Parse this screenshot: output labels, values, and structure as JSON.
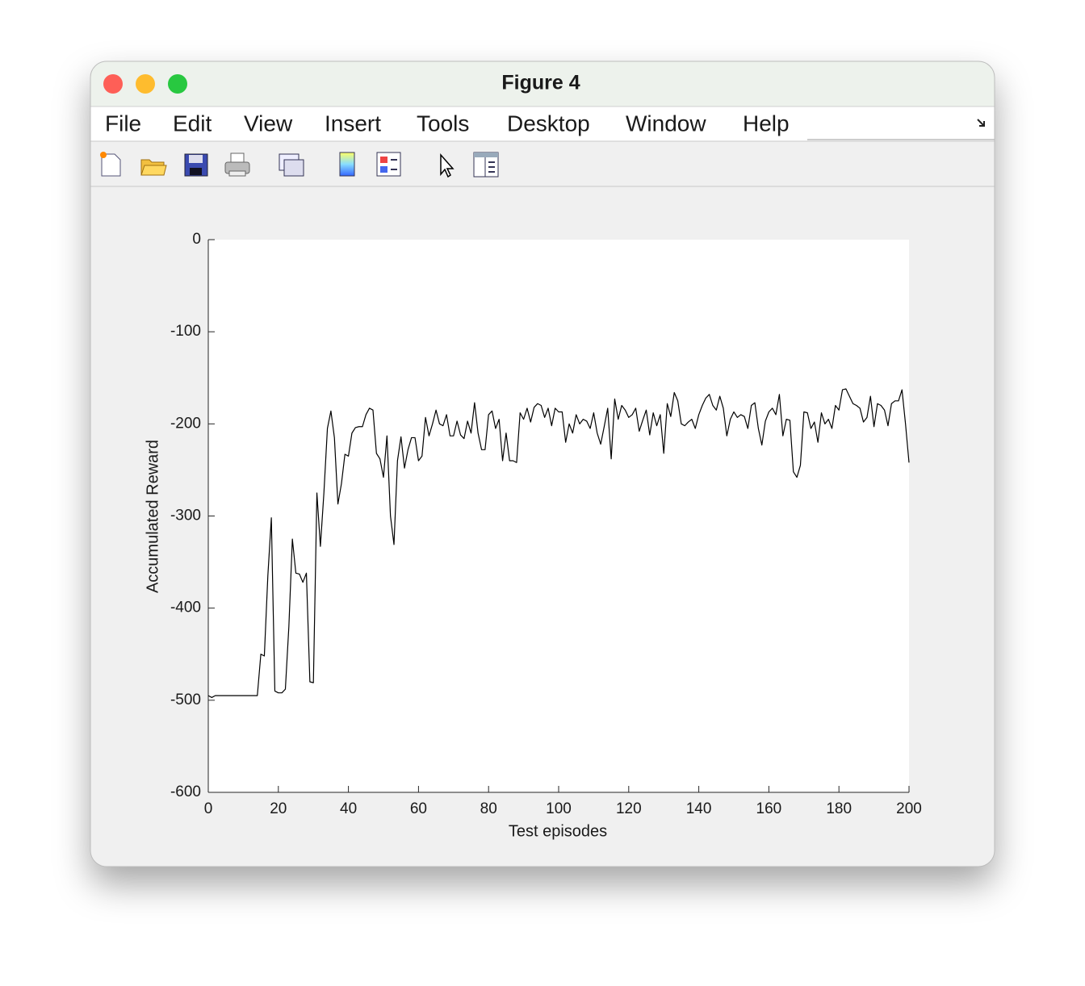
{
  "window": {
    "title": "Figure 4",
    "menu": [
      "File",
      "Edit",
      "View",
      "Insert",
      "Tools",
      "Desktop",
      "Window",
      "Help"
    ]
  },
  "chart_data": {
    "type": "line",
    "xlabel": "Test episodes",
    "ylabel": "Accumulated Reward",
    "color": "#000000",
    "xlim": [
      0,
      200
    ],
    "xticks": [
      0,
      20,
      40,
      60,
      80,
      100,
      120,
      140,
      160,
      180,
      200
    ],
    "ylim": [
      -600,
      0
    ],
    "yticks": [
      0,
      -100,
      -200,
      -300,
      -400,
      -500,
      -600
    ],
    "x": [
      0,
      1,
      2,
      3,
      4,
      5,
      6,
      7,
      8,
      9,
      10,
      11,
      12,
      13,
      14,
      15,
      16,
      17,
      18,
      19,
      20,
      21,
      22,
      23,
      24,
      25,
      26,
      27,
      28,
      29,
      30,
      31,
      32,
      33,
      34,
      35,
      36,
      37,
      38,
      39,
      40,
      41,
      42,
      43,
      44,
      45,
      46,
      47,
      48,
      49,
      50,
      51,
      52,
      53,
      54,
      55,
      56,
      57,
      58,
      59,
      60,
      61,
      62,
      63,
      64,
      65,
      66,
      67,
      68,
      69,
      70,
      71,
      72,
      73,
      74,
      75,
      76,
      77,
      78,
      79,
      80,
      81,
      82,
      83,
      84,
      85,
      86,
      87,
      88,
      89,
      90,
      91,
      92,
      93,
      94,
      95,
      96,
      97,
      98,
      99,
      100,
      101,
      102,
      103,
      104,
      105,
      106,
      107,
      108,
      109,
      110,
      111,
      112,
      113,
      114,
      115,
      116,
      117,
      118,
      119,
      120,
      121,
      122,
      123,
      124,
      125,
      126,
      127,
      128,
      129,
      130,
      131,
      132,
      133,
      134,
      135,
      136,
      137,
      138,
      139,
      140,
      141,
      142,
      143,
      144,
      145,
      146,
      147,
      148,
      149,
      150,
      151,
      152,
      153,
      154,
      155,
      156,
      157,
      158,
      159,
      160,
      161,
      162,
      163,
      164,
      165,
      166,
      167,
      168,
      169,
      170,
      171,
      172,
      173,
      174,
      175,
      176,
      177,
      178,
      179,
      180,
      181,
      182,
      183,
      184,
      185,
      186,
      187,
      188,
      189,
      190,
      191,
      192,
      193,
      194,
      195,
      196,
      197,
      198,
      199,
      200
    ],
    "values": [
      -495,
      -497,
      -495,
      -495,
      -495,
      -495,
      -495,
      -495,
      -495,
      -495,
      -495,
      -495,
      -495,
      -495,
      -495,
      -450,
      -452,
      -365,
      -302,
      -490,
      -492,
      -492,
      -488,
      -420,
      -325,
      -362,
      -363,
      -372,
      -362,
      -480,
      -481,
      -275,
      -333,
      -275,
      -205,
      -186,
      -215,
      -287,
      -265,
      -233,
      -235,
      -210,
      -204,
      -203,
      -203,
      -190,
      -183,
      -185,
      -232,
      -238,
      -258,
      -213,
      -300,
      -331,
      -240,
      -214,
      -248,
      -228,
      -215,
      -215,
      -240,
      -235,
      -193,
      -213,
      -200,
      -185,
      -200,
      -202,
      -190,
      -213,
      -213,
      -197,
      -212,
      -216,
      -197,
      -210,
      -177,
      -210,
      -228,
      -228,
      -190,
      -186,
      -205,
      -195,
      -240,
      -210,
      -240,
      -240,
      -242,
      -188,
      -195,
      -183,
      -198,
      -182,
      -178,
      -180,
      -193,
      -183,
      -202,
      -183,
      -187,
      -187,
      -220,
      -200,
      -210,
      -190,
      -200,
      -195,
      -197,
      -205,
      -188,
      -210,
      -222,
      -203,
      -183,
      -238,
      -173,
      -195,
      -180,
      -185,
      -193,
      -190,
      -183,
      -208,
      -196,
      -185,
      -212,
      -188,
      -202,
      -190,
      -232,
      -178,
      -192,
      -166,
      -175,
      -200,
      -202,
      -198,
      -195,
      -205,
      -190,
      -180,
      -172,
      -168,
      -180,
      -185,
      -170,
      -183,
      -213,
      -195,
      -187,
      -193,
      -190,
      -192,
      -205,
      -180,
      -177,
      -205,
      -223,
      -197,
      -187,
      -183,
      -190,
      -168,
      -213,
      -195,
      -196,
      -252,
      -258,
      -245,
      -187,
      -188,
      -205,
      -198,
      -220,
      -188,
      -200,
      -195,
      -205,
      -180,
      -185,
      -163,
      -162,
      -170,
      -178,
      -180,
      -183,
      -198,
      -193,
      -170,
      -203,
      -178,
      -180,
      -185,
      -202,
      -178,
      -175,
      -175,
      -163,
      -200,
      -242
    ]
  }
}
